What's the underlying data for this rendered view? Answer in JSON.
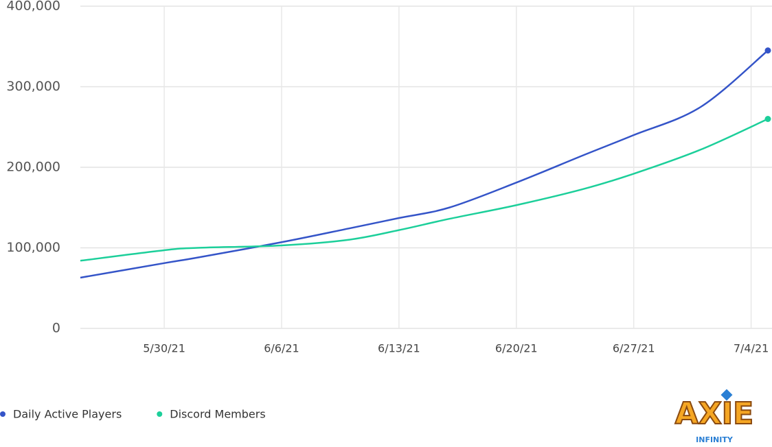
{
  "chart_data": {
    "type": "line",
    "x": [
      "2021-05-25",
      "2021-05-30",
      "2021-06-01",
      "2021-06-06",
      "2021-06-10",
      "2021-06-13",
      "2021-06-16",
      "2021-06-20",
      "2021-06-24",
      "2021-06-27",
      "2021-07-01",
      "2021-07-05"
    ],
    "series": [
      {
        "name": "Daily Active Players",
        "color": "#3454c8",
        "values": [
          63000,
          81000,
          88000,
          107000,
          124000,
          137000,
          150000,
          181000,
          215000,
          240000,
          275000,
          345000
        ]
      },
      {
        "name": "Discord Members",
        "color": "#1ccf9a",
        "values": [
          84000,
          97000,
          100000,
          103000,
          110000,
          122000,
          136000,
          153000,
          173000,
          192000,
          222000,
          260000
        ]
      }
    ],
    "xlim": [
      "2021-05-25",
      "2021-07-05"
    ],
    "xticks": [
      {
        "value": "2021-05-30",
        "label": "5/30/21"
      },
      {
        "value": "2021-06-06",
        "label": "6/6/21"
      },
      {
        "value": "2021-06-13",
        "label": "6/13/21"
      },
      {
        "value": "2021-06-20",
        "label": "6/20/21"
      },
      {
        "value": "2021-06-27",
        "label": "6/27/21"
      },
      {
        "value": "2021-07-04",
        "label": "7/4/21"
      }
    ],
    "ylim": [
      0,
      400000
    ],
    "yticks": [
      0,
      {
        "value": 100000,
        "label": "100,000"
      },
      {
        "value": 200000,
        "label": "200,000"
      },
      {
        "value": 300000,
        "label": "300,000"
      },
      {
        "value": 400000,
        "label": "400,000"
      }
    ],
    "grid": true,
    "legend": "bottom-left",
    "logo": {
      "text": "AXIE",
      "subtext": "INFINITY"
    }
  }
}
